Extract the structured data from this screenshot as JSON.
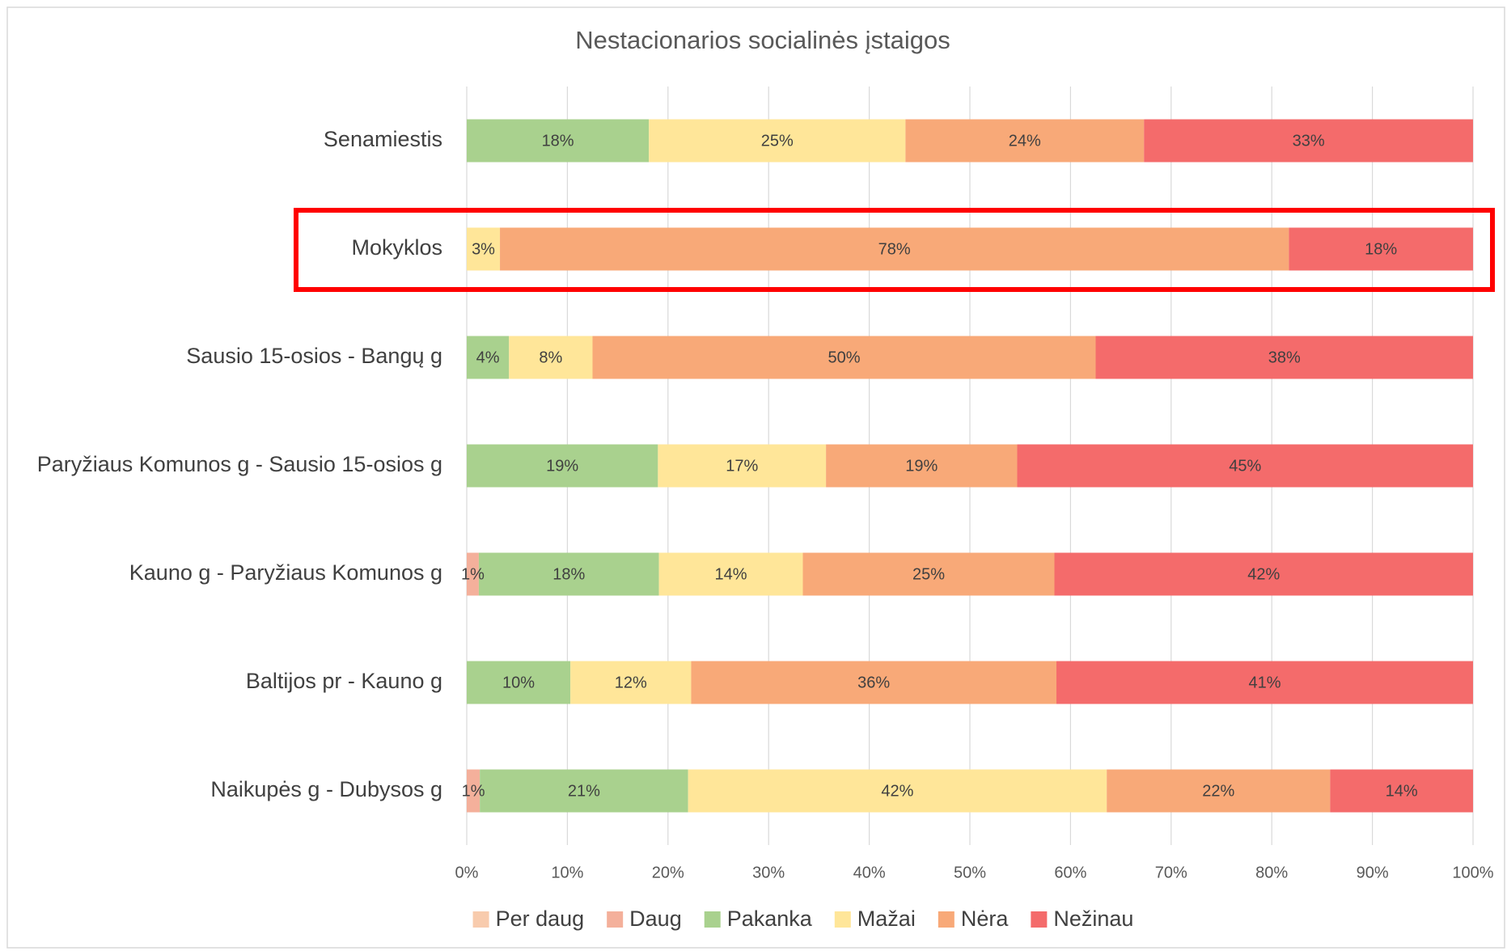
{
  "chart_data": {
    "type": "stacked_barh",
    "title": "Nestacionarios socialinės įstaigos",
    "categories": [
      "Senamiestis",
      "Mokyklos",
      "Sausio 15-osios - Bangų g",
      "Paryžiaus Komunos g - Sausio 15-osios g",
      "Kauno g - Paryžiaus Komunos g",
      "Baltijos pr - Kauno g",
      "Naikupės g - Dubysos g"
    ],
    "series": [
      {
        "name": "Per daug",
        "color": "#f8cbad",
        "values": [
          null,
          null,
          null,
          null,
          null,
          null,
          null
        ],
        "value_labels": [
          null,
          null,
          null,
          null,
          null,
          null,
          null
        ]
      },
      {
        "name": "Daug",
        "color": "#f4b09b",
        "values": [
          null,
          null,
          null,
          null,
          1.2,
          null,
          1.3
        ],
        "value_labels": [
          null,
          null,
          null,
          null,
          "1%",
          null,
          "1%"
        ]
      },
      {
        "name": "Pakanka",
        "color": "#a9d18e",
        "values": [
          18.1,
          null,
          4.2,
          19.0,
          17.9,
          10.3,
          20.7
        ],
        "value_labels": [
          "18%",
          null,
          "4%",
          "19%",
          "18%",
          "10%",
          "21%"
        ]
      },
      {
        "name": "Mažai",
        "color": "#ffe699",
        "values": [
          25.5,
          3.3,
          8.3,
          16.7,
          14.3,
          12.0,
          41.6
        ],
        "value_labels": [
          "25%",
          "3%",
          "8%",
          "17%",
          "14%",
          "12%",
          "42%"
        ]
      },
      {
        "name": "Nėra",
        "color": "#f8a978",
        "values": [
          23.7,
          78.4,
          50.0,
          19.0,
          25.0,
          36.3,
          22.2
        ],
        "value_labels": [
          "24%",
          "78%",
          "50%",
          "19%",
          "25%",
          "36%",
          "22%"
        ]
      },
      {
        "name": "Nežinau",
        "color": "#f46b6b",
        "values": [
          32.7,
          18.3,
          37.5,
          45.3,
          41.6,
          41.4,
          14.2
        ],
        "value_labels": [
          "33%",
          "18%",
          "38%",
          "45%",
          "42%",
          "41%",
          "14%"
        ]
      }
    ],
    "xlim": [
      0,
      100
    ],
    "xticks": [
      {
        "value": 0,
        "label": "0%"
      },
      {
        "value": 10,
        "label": "10%"
      },
      {
        "value": 20,
        "label": "20%"
      },
      {
        "value": 30,
        "label": "30%"
      },
      {
        "value": 40,
        "label": "40%"
      },
      {
        "value": 50,
        "label": "50%"
      },
      {
        "value": 60,
        "label": "60%"
      },
      {
        "value": 70,
        "label": "70%"
      },
      {
        "value": 80,
        "label": "80%"
      },
      {
        "value": 90,
        "label": "90%"
      },
      {
        "value": 100,
        "label": "100%"
      }
    ],
    "grid": true,
    "legend": "bottom"
  }
}
